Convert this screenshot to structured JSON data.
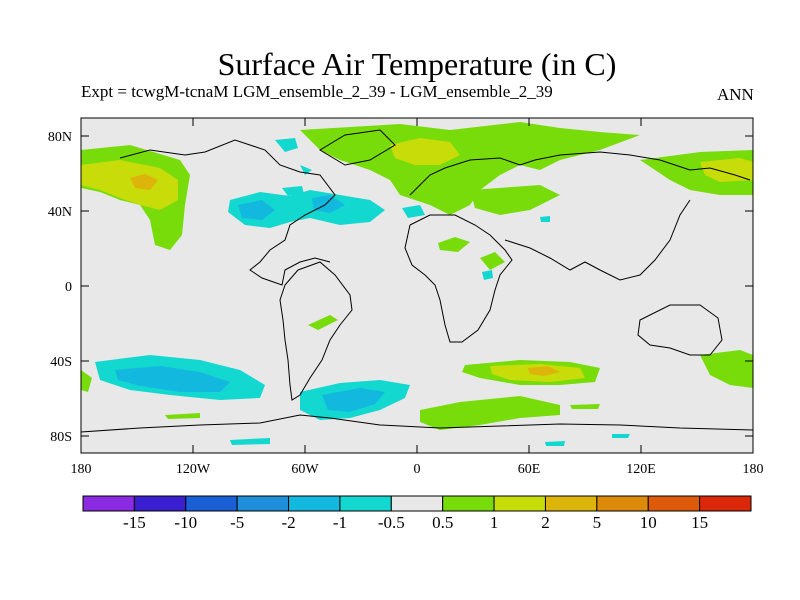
{
  "title": "Surface Air Temperature (in C)",
  "subtitle_left": "Expt = tcwgM-tcnaM   LGM_ensemble_2_39 - LGM_ensemble_2_39",
  "subtitle_right": "ANN",
  "lat_labels": [
    "80N",
    "40N",
    "0",
    "40S",
    "80S"
  ],
  "lon_labels": [
    "180",
    "120W",
    "60W",
    "0",
    "60E",
    "120E",
    "180"
  ],
  "colorbar": {
    "colors": [
      "#8a2be2",
      "#3a1fd0",
      "#1a5fd6",
      "#1f8fdc",
      "#12b8de",
      "#12d8d0",
      "#e8e8e8",
      "#78dc0a",
      "#c8dc0a",
      "#dcb40a",
      "#dc8a0a",
      "#dc5a0a",
      "#dc280a"
    ],
    "labels": [
      "-15",
      "-10",
      "-5",
      "-2",
      "-1",
      "-0.5",
      "0.5",
      "1",
      "2",
      "5",
      "10",
      "15"
    ]
  },
  "colors": {
    "background": "#e8e8e8",
    "cyan": "#12d8d0",
    "blue": "#12b8de",
    "green": "#78dc0a",
    "yellow": "#c8dc0a",
    "orange": "#dcb40a"
  }
}
